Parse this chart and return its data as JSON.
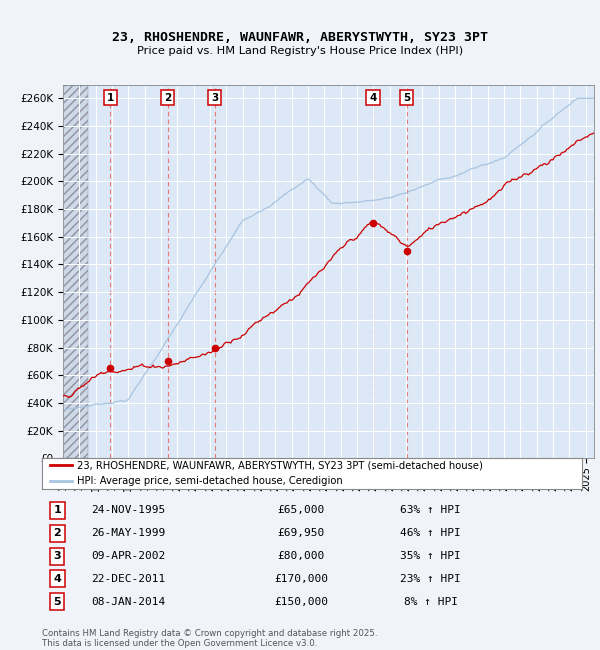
{
  "title": "23, RHOSHENDRE, WAUNFAWR, ABERYSTWYTH, SY23 3PT",
  "subtitle": "Price paid vs. HM Land Registry's House Price Index (HPI)",
  "ylim": [
    0,
    270000
  ],
  "yticks": [
    0,
    20000,
    40000,
    60000,
    80000,
    100000,
    120000,
    140000,
    160000,
    180000,
    200000,
    220000,
    240000,
    260000
  ],
  "ytick_labels": [
    "£0",
    "£20K",
    "£40K",
    "£60K",
    "£80K",
    "£100K",
    "£120K",
    "£140K",
    "£160K",
    "£180K",
    "£200K",
    "£220K",
    "£240K",
    "£260K"
  ],
  "hpi_color": "#a8c4e0",
  "price_color": "#cc0000",
  "vline_color": "#e87878",
  "plot_bg_color": "#dce8f5",
  "fig_bg_color": "#f0f4fa",
  "hatch_color": "#b0b8c8",
  "transactions": [
    {
      "num": 1,
      "date": "24-NOV-1995",
      "price": 65000,
      "hpi_pct": "63%",
      "x_year": 1995.9
    },
    {
      "num": 2,
      "date": "26-MAY-1999",
      "price": 69950,
      "hpi_pct": "46%",
      "x_year": 1999.4
    },
    {
      "num": 3,
      "date": "09-APR-2002",
      "price": 80000,
      "hpi_pct": "35%",
      "x_year": 2002.3
    },
    {
      "num": 4,
      "date": "22-DEC-2011",
      "price": 170000,
      "hpi_pct": "23%",
      "x_year": 2011.97
    },
    {
      "num": 5,
      "date": "08-JAN-2014",
      "price": 150000,
      "hpi_pct": "8%",
      "x_year": 2014.03
    }
  ],
  "legend_house": "23, RHOSHENDRE, WAUNFAWR, ABERYSTWYTH, SY23 3PT (semi-detached house)",
  "legend_hpi": "HPI: Average price, semi-detached house, Ceredigion",
  "footnote": "Contains HM Land Registry data © Crown copyright and database right 2025.\nThis data is licensed under the Open Government Licence v3.0.",
  "xmin": 1993.0,
  "xmax": 2025.5,
  "hatch_end": 1994.5
}
